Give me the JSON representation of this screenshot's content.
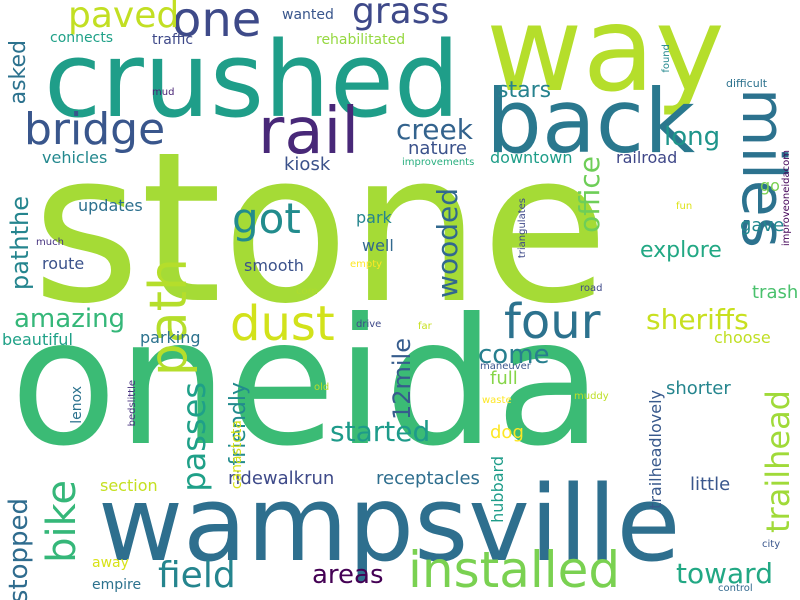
{
  "words": [
    {
      "text": "stone",
      "color": "#a5db36"
    },
    {
      "text": "oneida",
      "color": "#3bbb75"
    },
    {
      "text": "wampsville",
      "color": "#2e6f8e"
    },
    {
      "text": "crushed",
      "color": "#1f9e89"
    },
    {
      "text": "way",
      "color": "#b5de2b"
    },
    {
      "text": "back",
      "color": "#2a788e"
    },
    {
      "text": "rail",
      "color": "#482878"
    },
    {
      "text": "miles",
      "color": "#2c728e"
    },
    {
      "text": "installed",
      "color": "#7ad151"
    },
    {
      "text": "bridge",
      "color": "#39568c"
    },
    {
      "text": "four",
      "color": "#2c728e"
    },
    {
      "text": "dust",
      "color": "#d2e21b"
    },
    {
      "text": "path",
      "color": "#b5de2b"
    },
    {
      "text": "one",
      "color": "#3e4a89"
    },
    {
      "text": "grass",
      "color": "#3e4989"
    },
    {
      "text": "paved",
      "color": "#c2df23"
    },
    {
      "text": "got",
      "color": "#228c8d"
    },
    {
      "text": "field",
      "color": "#25858e"
    },
    {
      "text": "areas",
      "color": "#440154"
    },
    {
      "text": "toward",
      "color": "#22a884"
    },
    {
      "text": "bike",
      "color": "#35b779"
    },
    {
      "text": "passes",
      "color": "#1fa088"
    },
    {
      "text": "trailhead",
      "color": "#a0da39"
    },
    {
      "text": "started",
      "color": "#1e9b8a"
    },
    {
      "text": "wooded",
      "color": "#31688e"
    },
    {
      "text": "office",
      "color": "#6ece58"
    },
    {
      "text": "creek",
      "color": "#33638d"
    },
    {
      "text": "12mile",
      "color": "#365c8d"
    },
    {
      "text": "paththe",
      "color": "#25858e"
    },
    {
      "text": "amazing",
      "color": "#35b779"
    },
    {
      "text": "sheriffs",
      "color": "#c8e020"
    },
    {
      "text": "come",
      "color": "#277f8e"
    },
    {
      "text": "stopped",
      "color": "#2f6c8e"
    },
    {
      "text": "long",
      "color": "#1f958b"
    },
    {
      "text": "explore",
      "color": "#22a884"
    },
    {
      "text": "receptacles",
      "color": "#2e6e8e"
    },
    {
      "text": "asked",
      "color": "#2c728e"
    },
    {
      "text": "stars",
      "color": "#26828e"
    },
    {
      "text": "nature",
      "color": "#3b528b"
    },
    {
      "text": "downtown",
      "color": "#1f9e89"
    },
    {
      "text": "railroad",
      "color": "#3f4788"
    },
    {
      "text": "kiosk",
      "color": "#3b528b"
    },
    {
      "text": "friendly",
      "color": "#228b8d"
    },
    {
      "text": "vehicles",
      "color": "#23888e"
    },
    {
      "text": "gave",
      "color": "#23888e"
    },
    {
      "text": "go",
      "color": "#7ad151"
    },
    {
      "text": "trash",
      "color": "#4ac16d"
    },
    {
      "text": "choose",
      "color": "#c0df25"
    },
    {
      "text": "shorter",
      "color": "#25858e"
    },
    {
      "text": "little",
      "color": "#39568c"
    },
    {
      "text": "smooth",
      "color": "#3b528b"
    },
    {
      "text": "parking",
      "color": "#2c728e"
    },
    {
      "text": "route",
      "color": "#3b528b"
    },
    {
      "text": "well",
      "color": "#31688e"
    },
    {
      "text": "park",
      "color": "#25858e"
    },
    {
      "text": "updates",
      "color": "#2d708e"
    },
    {
      "text": "beautiful",
      "color": "#1fa187"
    },
    {
      "text": "dog",
      "color": "#fde725"
    },
    {
      "text": "full",
      "color": "#86d549"
    },
    {
      "text": "hubbard",
      "color": "#1e9c89"
    },
    {
      "text": "lenox",
      "color": "#2c728e"
    },
    {
      "text": "section",
      "color": "#c5e021"
    },
    {
      "text": "ridewalkrun",
      "color": "#3e4a89"
    },
    {
      "text": "trailheadlovely",
      "color": "#38598c"
    },
    {
      "text": "canastota",
      "color": "#d8e219"
    },
    {
      "text": "away",
      "color": "#d8e219"
    },
    {
      "text": "empire",
      "color": "#2c728e"
    },
    {
      "text": "rehabilitated",
      "color": "#95d840"
    },
    {
      "text": "traffic",
      "color": "#3e4989"
    },
    {
      "text": "connects",
      "color": "#1fa188"
    },
    {
      "text": "wanted",
      "color": "#39568c"
    },
    {
      "text": "improvements",
      "color": "#29af7f"
    },
    {
      "text": "improveoneidacom",
      "color": "#450559"
    },
    {
      "text": "fun",
      "color": "#dde318"
    },
    {
      "text": "difficult",
      "color": "#2c728e"
    },
    {
      "text": "found",
      "color": "#23888e"
    },
    {
      "text": "mud",
      "color": "#482475"
    },
    {
      "text": "much",
      "color": "#46337f"
    },
    {
      "text": "empty",
      "color": "#fde725"
    },
    {
      "text": "corn",
      "color": "#addc30"
    },
    {
      "text": "triangulates",
      "color": "#3e4989"
    },
    {
      "text": "road",
      "color": "#3e4989"
    },
    {
      "text": "drive",
      "color": "#3e4989"
    },
    {
      "text": "far",
      "color": "#c8e020"
    },
    {
      "text": "maneuver",
      "color": "#39568c"
    },
    {
      "text": "old",
      "color": "#b8de29"
    },
    {
      "text": "waste",
      "color": "#fde725"
    },
    {
      "text": "muddy",
      "color": "#bddf26"
    },
    {
      "text": "bedslittle",
      "color": "#46307e"
    },
    {
      "text": "city",
      "color": "#39568c"
    },
    {
      "text": "control",
      "color": "#31688e"
    }
  ]
}
